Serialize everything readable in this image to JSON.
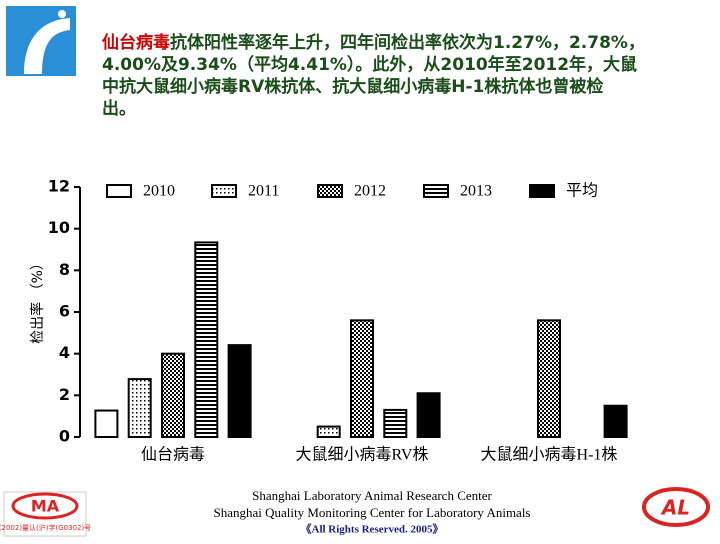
{
  "slide": {
    "highlight": "仙台病毒",
    "text_lines": [
      "抗体阳性率逐年上升，四年间检出率依次为1.27%，2.78%，",
      "4.00%及9.34%（平均4.41%）。此外，从2010年至2012年，大鼠",
      "中抗大鼠细小病毒RV株抗体、抗大鼠细小病毒H-1株抗体也曾被检",
      "出。"
    ],
    "footer": [
      "Shanghai Laboratory Animal Research Center",
      "Shanghai Quality Monitoring Center for Laboratory Animals",
      "《All Rights Reserved. 2005》"
    ],
    "left_logo": "MA",
    "left_logo_caption": "(2002)量认(沪)字(G0302)号",
    "right_logo": "AL"
  },
  "chart_data": {
    "type": "bar",
    "y_label": "检出率 （%）",
    "categories": [
      "仙台病毒",
      "大鼠细小病毒RV株",
      "大鼠细小病毒H-1株"
    ],
    "series": [
      {
        "name": "2010",
        "pattern": "white",
        "values": [
          1.27,
          null,
          null
        ]
      },
      {
        "name": "2011",
        "pattern": "dots",
        "values": [
          2.78,
          0.5,
          null
        ]
      },
      {
        "name": "2012",
        "pattern": "checker",
        "values": [
          4.0,
          5.6,
          5.6
        ]
      },
      {
        "name": "2013",
        "pattern": "stripes",
        "values": [
          9.34,
          1.3,
          null
        ]
      },
      {
        "name": "平均",
        "pattern": "black",
        "values": [
          4.41,
          2.1,
          1.5
        ]
      }
    ],
    "ylim": [
      0,
      12
    ],
    "yticks": [
      0,
      2,
      4,
      6,
      8,
      10,
      12
    ]
  }
}
